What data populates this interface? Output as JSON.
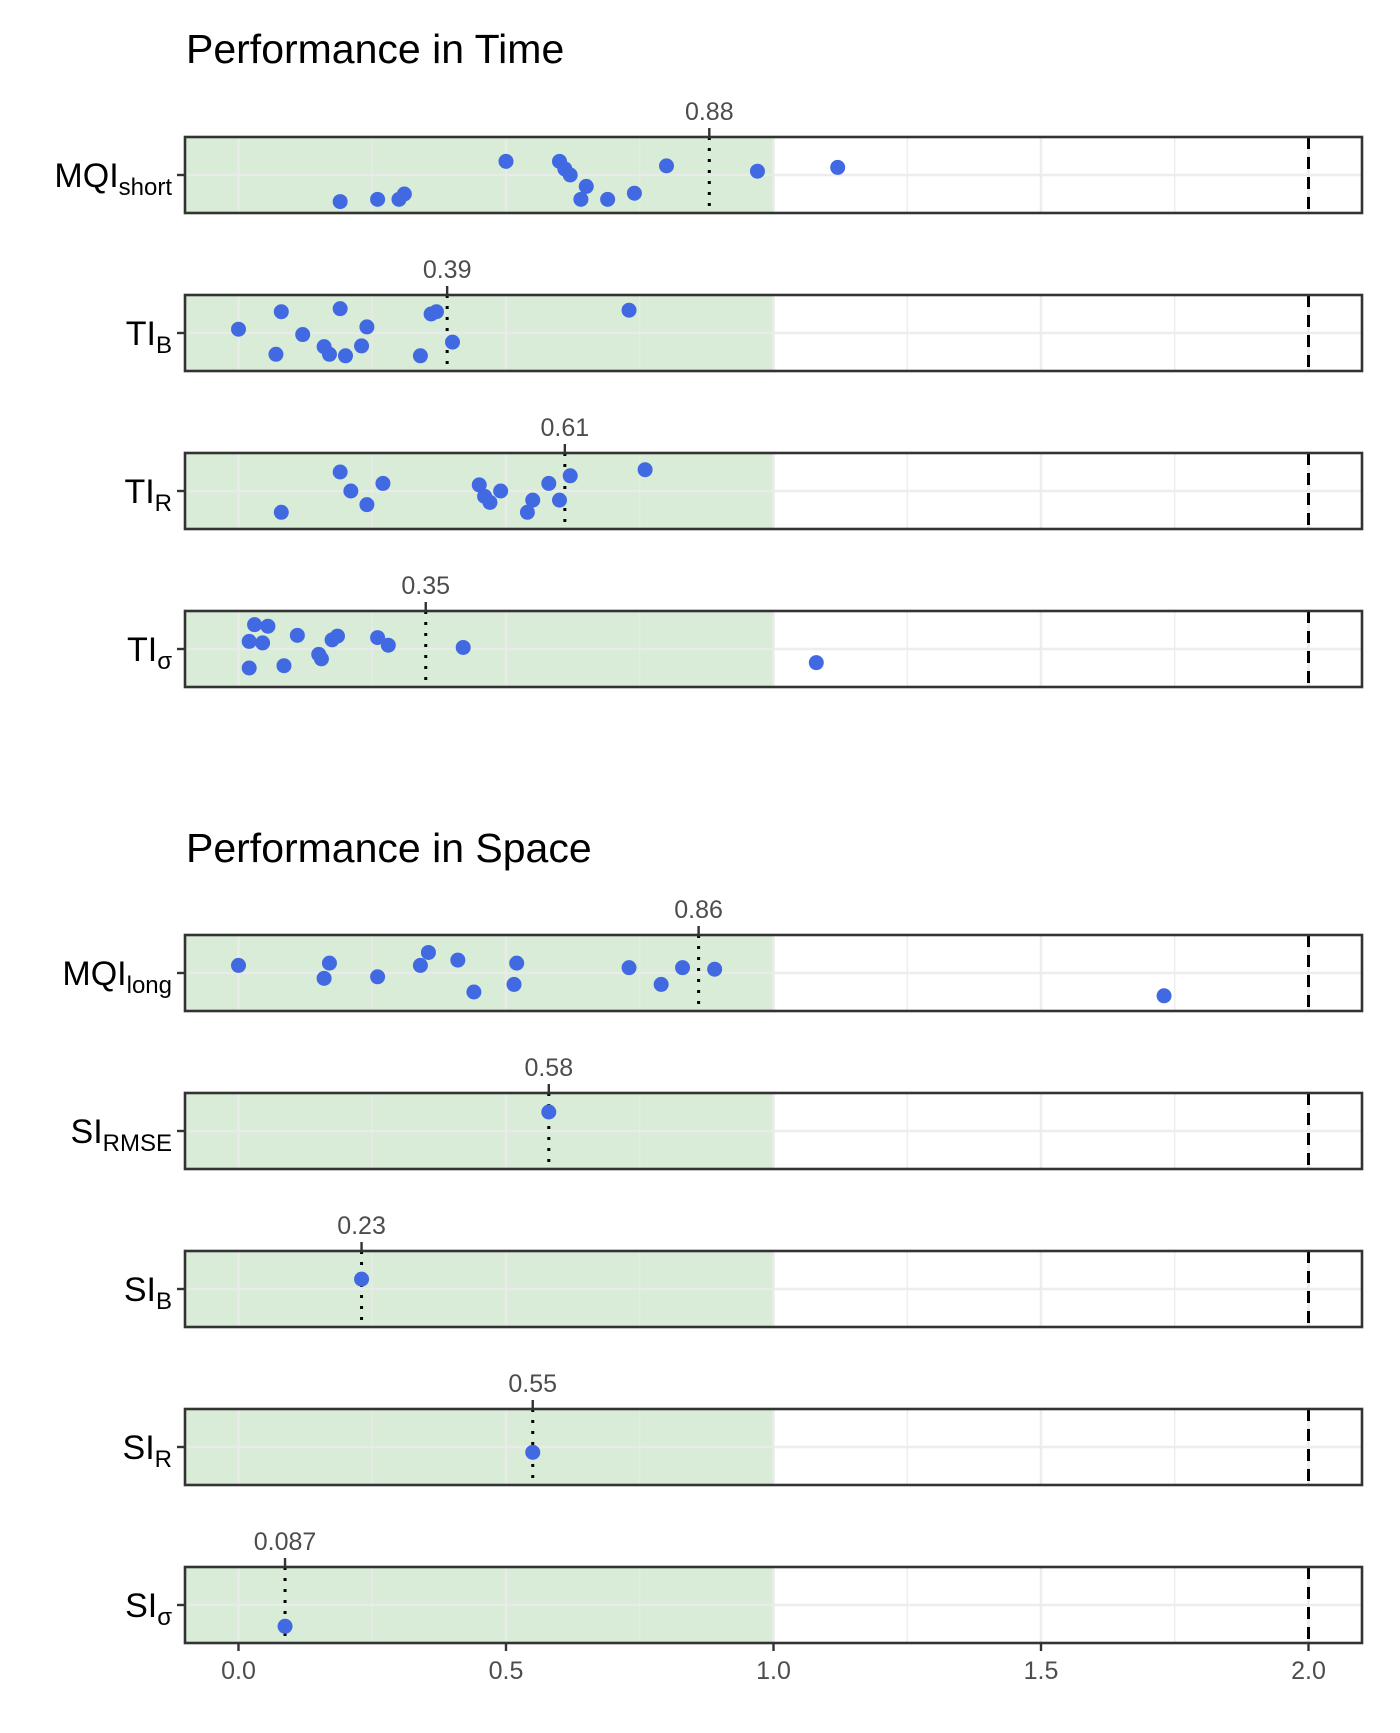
{
  "chart_data": {
    "type": "scatter",
    "x_axis": {
      "range": [
        -0.1,
        2.1
      ],
      "ticks": [
        0.0,
        0.5,
        1.0,
        1.5,
        2.0
      ],
      "tick_labels": [
        "0.0",
        "0.5",
        "1.0",
        "1.5",
        "2.0"
      ],
      "minor_ticks": [
        0.25,
        0.75,
        1.25,
        1.75
      ]
    },
    "good_zone": [
      0,
      1
    ],
    "reference_line": 2,
    "colors": {
      "point": "#4169e1",
      "zone": "#d8ecd8",
      "frame": "#333333",
      "grid": "#ebebeb"
    },
    "sections": [
      {
        "title": "Performance in Time",
        "rows": [
          {
            "label": "MQI",
            "sub": "short",
            "median_label": "0.88",
            "median": 0.88,
            "points": [
              {
                "x": 0.5,
                "y": 0.32
              },
              {
                "x": 0.6,
                "y": 0.32
              },
              {
                "x": 0.61,
                "y": 0.42
              },
              {
                "x": 0.62,
                "y": 0.5
              },
              {
                "x": 0.8,
                "y": 0.38
              },
              {
                "x": 0.97,
                "y": 0.45
              },
              {
                "x": 1.12,
                "y": 0.4
              },
              {
                "x": 0.65,
                "y": 0.65
              },
              {
                "x": 0.74,
                "y": 0.74
              },
              {
                "x": 0.69,
                "y": 0.82
              },
              {
                "x": 0.64,
                "y": 0.82
              },
              {
                "x": 0.31,
                "y": 0.75
              },
              {
                "x": 0.3,
                "y": 0.82
              },
              {
                "x": 0.26,
                "y": 0.82
              },
              {
                "x": 0.19,
                "y": 0.85
              }
            ]
          },
          {
            "label": "TI",
            "sub": "B",
            "median_label": "0.39",
            "median": 0.39,
            "points": [
              {
                "x": 0.0,
                "y": 0.45
              },
              {
                "x": 0.08,
                "y": 0.22
              },
              {
                "x": 0.12,
                "y": 0.52
              },
              {
                "x": 0.19,
                "y": 0.18
              },
              {
                "x": 0.24,
                "y": 0.42
              },
              {
                "x": 0.07,
                "y": 0.78
              },
              {
                "x": 0.16,
                "y": 0.68
              },
              {
                "x": 0.17,
                "y": 0.78
              },
              {
                "x": 0.2,
                "y": 0.8
              },
              {
                "x": 0.23,
                "y": 0.67
              },
              {
                "x": 0.34,
                "y": 0.8
              },
              {
                "x": 0.36,
                "y": 0.25
              },
              {
                "x": 0.37,
                "y": 0.22
              },
              {
                "x": 0.4,
                "y": 0.62
              },
              {
                "x": 0.73,
                "y": 0.2
              }
            ]
          },
          {
            "label": "TI",
            "sub": "R",
            "median_label": "0.61",
            "median": 0.61,
            "points": [
              {
                "x": 0.19,
                "y": 0.25
              },
              {
                "x": 0.21,
                "y": 0.5
              },
              {
                "x": 0.27,
                "y": 0.4
              },
              {
                "x": 0.24,
                "y": 0.68
              },
              {
                "x": 0.08,
                "y": 0.78
              },
              {
                "x": 0.45,
                "y": 0.42
              },
              {
                "x": 0.46,
                "y": 0.57
              },
              {
                "x": 0.47,
                "y": 0.65
              },
              {
                "x": 0.49,
                "y": 0.5
              },
              {
                "x": 0.55,
                "y": 0.62
              },
              {
                "x": 0.58,
                "y": 0.4
              },
              {
                "x": 0.6,
                "y": 0.62
              },
              {
                "x": 0.54,
                "y": 0.78
              },
              {
                "x": 0.62,
                "y": 0.3
              },
              {
                "x": 0.76,
                "y": 0.22
              }
            ]
          },
          {
            "label": "TI",
            "sub": "σ",
            "median_label": "0.35",
            "median": 0.35,
            "points": [
              {
                "x": 0.03,
                "y": 0.18
              },
              {
                "x": 0.055,
                "y": 0.2
              },
              {
                "x": 0.02,
                "y": 0.4
              },
              {
                "x": 0.045,
                "y": 0.42
              },
              {
                "x": 0.11,
                "y": 0.32
              },
              {
                "x": 0.175,
                "y": 0.38
              },
              {
                "x": 0.185,
                "y": 0.33
              },
              {
                "x": 0.26,
                "y": 0.35
              },
              {
                "x": 0.28,
                "y": 0.45
              },
              {
                "x": 0.15,
                "y": 0.57
              },
              {
                "x": 0.155,
                "y": 0.63
              },
              {
                "x": 0.085,
                "y": 0.72
              },
              {
                "x": 0.02,
                "y": 0.75
              },
              {
                "x": 0.42,
                "y": 0.48
              },
              {
                "x": 1.08,
                "y": 0.68
              }
            ]
          }
        ]
      },
      {
        "title": "Performance in Space",
        "rows": [
          {
            "label": "MQI",
            "sub": "long",
            "median_label": "0.86",
            "median": 0.86,
            "points": [
              {
                "x": 0.0,
                "y": 0.4
              },
              {
                "x": 0.17,
                "y": 0.37
              },
              {
                "x": 0.16,
                "y": 0.57
              },
              {
                "x": 0.26,
                "y": 0.55
              },
              {
                "x": 0.34,
                "y": 0.4
              },
              {
                "x": 0.355,
                "y": 0.23
              },
              {
                "x": 0.41,
                "y": 0.33
              },
              {
                "x": 0.44,
                "y": 0.75
              },
              {
                "x": 0.52,
                "y": 0.37
              },
              {
                "x": 0.515,
                "y": 0.65
              },
              {
                "x": 0.73,
                "y": 0.43
              },
              {
                "x": 0.79,
                "y": 0.65
              },
              {
                "x": 0.83,
                "y": 0.43
              },
              {
                "x": 0.89,
                "y": 0.45
              },
              {
                "x": 1.73,
                "y": 0.8
              }
            ]
          },
          {
            "label": "SI",
            "sub": "RMSE",
            "median_label": "0.58",
            "median": 0.58,
            "points": [
              {
                "x": 0.58,
                "y": 0.25
              }
            ]
          },
          {
            "label": "SI",
            "sub": "B",
            "median_label": "0.23",
            "median": 0.23,
            "points": [
              {
                "x": 0.23,
                "y": 0.37
              }
            ]
          },
          {
            "label": "SI",
            "sub": "R",
            "median_label": "0.55",
            "median": 0.55,
            "points": [
              {
                "x": 0.55,
                "y": 0.57
              }
            ]
          },
          {
            "label": "SI",
            "sub": "σ",
            "median_label": "0.087",
            "median": 0.087,
            "points": [
              {
                "x": 0.087,
                "y": 0.78
              }
            ]
          }
        ]
      }
    ]
  }
}
